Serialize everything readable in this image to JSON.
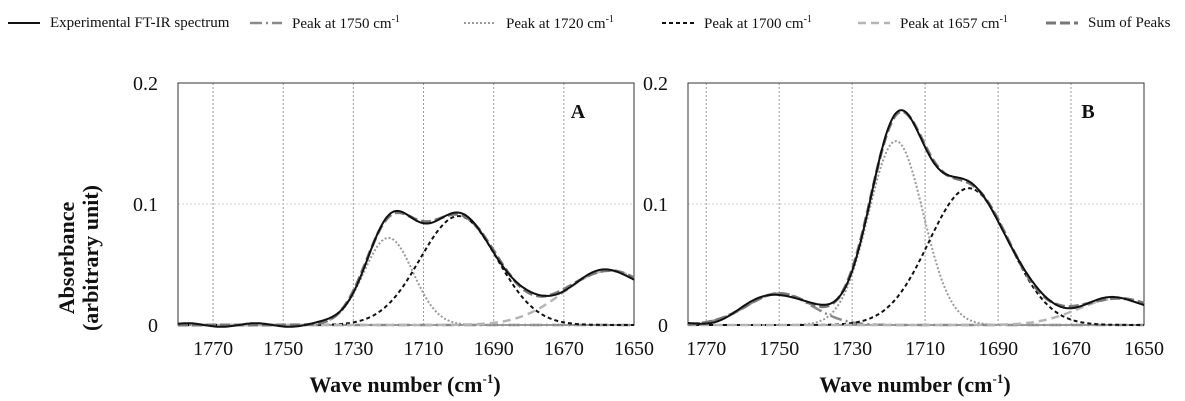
{
  "legend": {
    "items": [
      {
        "name": "experimental",
        "label_text": "Experimental FT-IR spectrum",
        "label_sup": ""
      },
      {
        "name": "p1750",
        "label_text": "Peak at 1750 cm",
        "label_sup": "-1"
      },
      {
        "name": "p1720",
        "label_text": "Peak at 1720 cm",
        "label_sup": "-1"
      },
      {
        "name": "p1700",
        "label_text": "Peak at 1700 cm",
        "label_sup": "-1"
      },
      {
        "name": "p1657",
        "label_text": "Peak at 1657 cm",
        "label_sup": "-1"
      },
      {
        "name": "sum",
        "label_text": "Sum of Peaks",
        "label_sup": ""
      }
    ]
  },
  "ylabel_line1": "Absorbance",
  "ylabel_line2": "(arbitrary unit)",
  "xlabel_main": "Wave number (cm",
  "xlabel_sup": "-1",
  "xlabel_close": ")",
  "chart_data": [
    {
      "type": "line",
      "panel_label": "A",
      "xlim": [
        1780,
        1650
      ],
      "ylim": [
        0,
        0.2
      ],
      "xticks": [
        1770,
        1750,
        1730,
        1710,
        1690,
        1670,
        1650
      ],
      "yticks": [
        {
          "v": 0,
          "t": "0"
        },
        {
          "v": 0.1,
          "t": "0.1"
        },
        {
          "v": 0.2,
          "t": "0.2"
        }
      ],
      "grid": true,
      "peaks": [
        {
          "key": "p1750",
          "center": 1750,
          "amp": 0.0,
          "width": 6
        },
        {
          "key": "p1720",
          "center": 1720,
          "amp": 0.072,
          "width": 7
        },
        {
          "key": "p1700",
          "center": 1700,
          "amp": 0.09,
          "width": 11
        },
        {
          "key": "p1657",
          "center": 1657,
          "amp": 0.045,
          "width": 13
        }
      ]
    },
    {
      "type": "line",
      "panel_label": "B",
      "xlim": [
        1775,
        1650
      ],
      "ylim": [
        0,
        0.2
      ],
      "xticks": [
        1770,
        1750,
        1730,
        1710,
        1690,
        1670,
        1650
      ],
      "yticks": [
        {
          "v": 0,
          "t": "0"
        },
        {
          "v": 0.1,
          "t": "0.1"
        },
        {
          "v": 0.2,
          "t": "0.2"
        }
      ],
      "grid": true,
      "peaks": [
        {
          "key": "p1750",
          "center": 1750,
          "amp": 0.026,
          "width": 9
        },
        {
          "key": "p1720",
          "center": 1718,
          "amp": 0.152,
          "width": 7.5
        },
        {
          "key": "p1700",
          "center": 1698,
          "amp": 0.113,
          "width": 11
        },
        {
          "key": "p1657",
          "center": 1657,
          "amp": 0.022,
          "width": 11
        }
      ]
    }
  ]
}
